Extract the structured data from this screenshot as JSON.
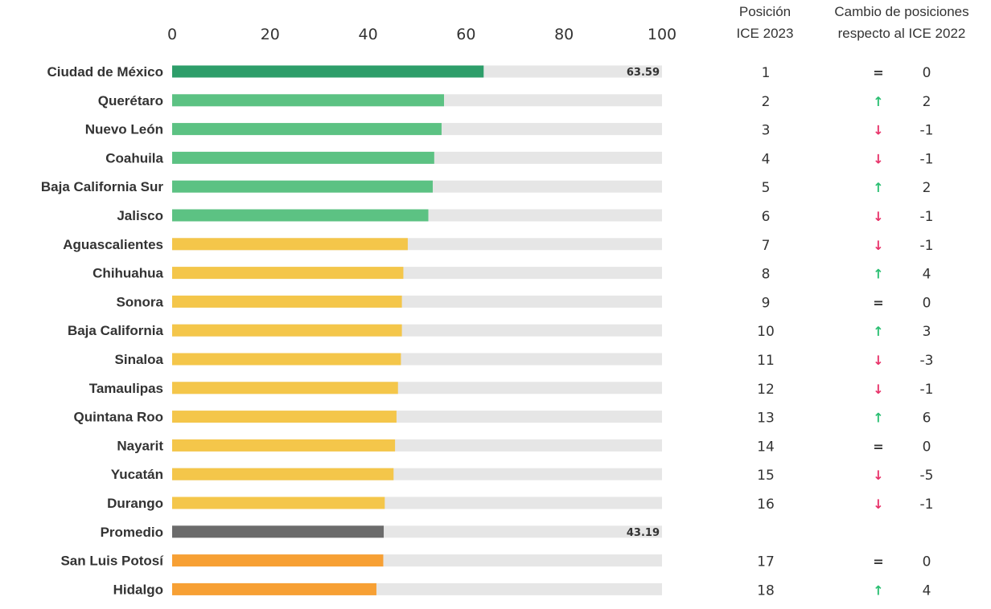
{
  "colors": {
    "track": "#e6e6e6",
    "top": "#2e9e6a",
    "green": "#5cc283",
    "yellow": "#f4c64a",
    "orange": "#f7a034",
    "average": "#6b6b6b",
    "up": "#2bbf72",
    "down": "#e8336a",
    "equal": "#333333"
  },
  "headers": {
    "position_line1": "Posición",
    "position_line2": "ICE 2023",
    "change_line1": "Cambio de posiciones",
    "change_line2": "respecto al ICE 2022"
  },
  "chart_data": {
    "type": "bar",
    "orientation": "horizontal",
    "xlim": [
      0,
      100
    ],
    "xticks": [
      "0",
      "20",
      "40",
      "60",
      "80",
      "100"
    ],
    "rows": [
      {
        "name": "Ciudad de México",
        "value": 63.59,
        "value_label": "63.59",
        "group": "top",
        "rank": "1",
        "change": "0",
        "dir": "equal"
      },
      {
        "name": "Querétaro",
        "value": 55.5,
        "group": "green",
        "rank": "2",
        "change": "2",
        "dir": "up"
      },
      {
        "name": "Nuevo León",
        "value": 55.0,
        "group": "green",
        "rank": "3",
        "change": "-1",
        "dir": "down"
      },
      {
        "name": "Coahuila",
        "value": 53.5,
        "group": "green",
        "rank": "4",
        "change": "-1",
        "dir": "down"
      },
      {
        "name": "Baja California Sur",
        "value": 53.2,
        "group": "green",
        "rank": "5",
        "change": "2",
        "dir": "up"
      },
      {
        "name": "Jalisco",
        "value": 52.3,
        "group": "green",
        "rank": "6",
        "change": "-1",
        "dir": "down"
      },
      {
        "name": "Aguascalientes",
        "value": 48.1,
        "group": "yellow",
        "rank": "7",
        "change": "-1",
        "dir": "down"
      },
      {
        "name": "Chihuahua",
        "value": 47.2,
        "group": "yellow",
        "rank": "8",
        "change": "4",
        "dir": "up"
      },
      {
        "name": "Sonora",
        "value": 46.9,
        "group": "yellow",
        "rank": "9",
        "change": "0",
        "dir": "equal"
      },
      {
        "name": "Baja California",
        "value": 46.9,
        "group": "yellow",
        "rank": "10",
        "change": "3",
        "dir": "up"
      },
      {
        "name": "Sinaloa",
        "value": 46.7,
        "group": "yellow",
        "rank": "11",
        "change": "-3",
        "dir": "down"
      },
      {
        "name": "Tamaulipas",
        "value": 46.1,
        "group": "yellow",
        "rank": "12",
        "change": "-1",
        "dir": "down"
      },
      {
        "name": "Quintana Roo",
        "value": 45.8,
        "group": "yellow",
        "rank": "13",
        "change": "6",
        "dir": "up"
      },
      {
        "name": "Nayarit",
        "value": 45.5,
        "group": "yellow",
        "rank": "14",
        "change": "0",
        "dir": "equal"
      },
      {
        "name": "Yucatán",
        "value": 45.2,
        "group": "yellow",
        "rank": "15",
        "change": "-5",
        "dir": "down"
      },
      {
        "name": "Durango",
        "value": 43.4,
        "group": "yellow",
        "rank": "16",
        "change": "-1",
        "dir": "down"
      },
      {
        "name": "Promedio",
        "value": 43.19,
        "value_label": "43.19",
        "group": "average",
        "rank": "",
        "change": "",
        "dir": ""
      },
      {
        "name": "San Luis Potosí",
        "value": 43.1,
        "group": "orange",
        "rank": "17",
        "change": "0",
        "dir": "equal"
      },
      {
        "name": "Hidalgo",
        "value": 41.7,
        "group": "orange",
        "rank": "18",
        "change": "4",
        "dir": "up"
      }
    ]
  }
}
